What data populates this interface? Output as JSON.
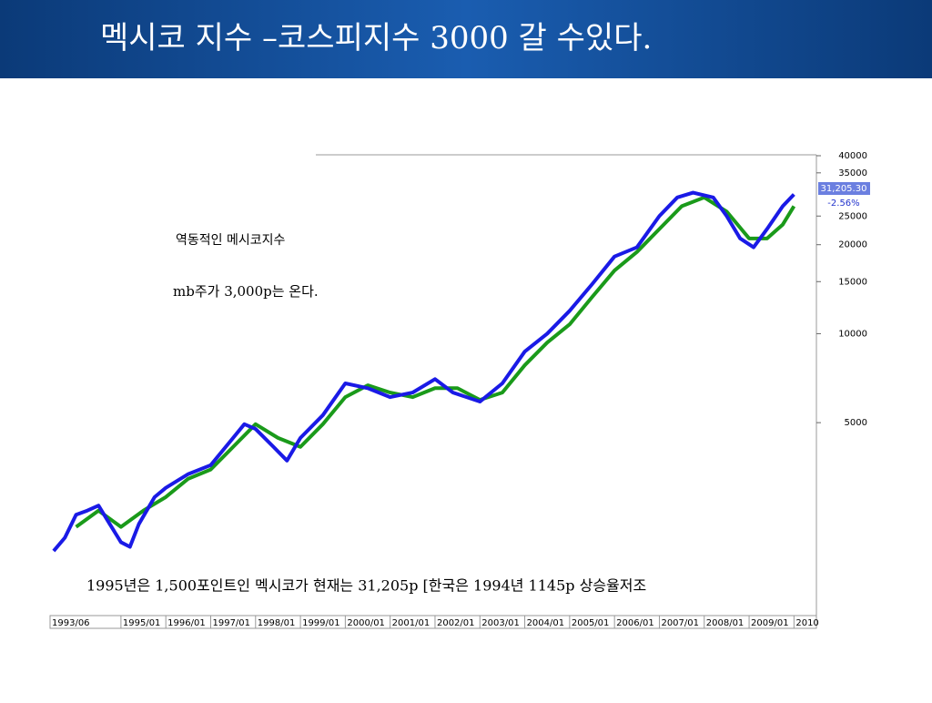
{
  "chart_data": {
    "type": "line",
    "title": "멕시코 지수 –코스피지수 3000 갈 수있다.",
    "annotations": [
      "역동적인 메시코지수",
      "mb주가  3,000p는 온다.",
      "1995년은 1,500포인트인 멕시코가 현재는 31,205p [한국은 1994년 1145p 상승율저조"
    ],
    "last_price": "31,205.30",
    "change": "-2.56%",
    "log_y": true,
    "ylim": [
      1000,
      40000
    ],
    "yticks": [
      5000,
      10000,
      15000,
      20000,
      25000,
      35000,
      40000
    ],
    "xlim": [
      1993.42,
      2010.5
    ],
    "xticks": [
      {
        "value": 1993.42,
        "label": "1993/06"
      },
      {
        "value": 1995,
        "label": "1995/01"
      },
      {
        "value": 1996,
        "label": "1996/01"
      },
      {
        "value": 1997,
        "label": "1997/01"
      },
      {
        "value": 1998,
        "label": "1998/01"
      },
      {
        "value": 1999,
        "label": "1999/01"
      },
      {
        "value": 2000,
        "label": "2000/01"
      },
      {
        "value": 2001,
        "label": "2001/01"
      },
      {
        "value": 2002,
        "label": "2002/01"
      },
      {
        "value": 2003,
        "label": "2003/01"
      },
      {
        "value": 2004,
        "label": "2004/01"
      },
      {
        "value": 2005,
        "label": "2005/01"
      },
      {
        "value": 2006,
        "label": "2006/01"
      },
      {
        "value": 2007,
        "label": "2007/01"
      },
      {
        "value": 2008,
        "label": "2008/01"
      },
      {
        "value": 2009,
        "label": "2009/01"
      },
      {
        "value": 2010,
        "label": "2010"
      }
    ],
    "series": [
      {
        "color": "#1a9a1a",
        "width": 4,
        "x": [
          1994.0,
          1994.5,
          1995.0,
          1995.5,
          1996.0,
          1996.5,
          1997.0,
          1997.5,
          1998.0,
          1998.5,
          1999.0,
          1999.5,
          2000.0,
          2000.5,
          2001.0,
          2001.5,
          2002.0,
          2002.5,
          2003.0,
          2003.5,
          2004.0,
          2004.5,
          2005.0,
          2005.5,
          2006.0,
          2006.5,
          2007.0,
          2007.5,
          2008.0,
          2008.5,
          2009.0,
          2009.4,
          2009.75,
          2010.0
        ],
        "values": [
          2220,
          2520,
          2220,
          2520,
          2800,
          3230,
          3470,
          4140,
          4940,
          4440,
          4140,
          4940,
          6100,
          6690,
          6320,
          6100,
          6540,
          6540,
          5970,
          6320,
          7820,
          9330,
          10750,
          13300,
          16360,
          18900,
          22600,
          27000,
          28900,
          25900,
          21000,
          21000,
          23400,
          27000
        ]
      },
      {
        "color": "#1a1ae6",
        "width": 4,
        "x": [
          1993.5,
          1993.75,
          1994.0,
          1994.25,
          1994.5,
          1994.75,
          1995.0,
          1995.2,
          1995.4,
          1995.75,
          1996.0,
          1996.5,
          1997.0,
          1997.5,
          1997.75,
          1998.0,
          1998.4,
          1998.7,
          1999.0,
          1999.5,
          2000.0,
          2000.5,
          2001.0,
          2001.5,
          2002.0,
          2002.4,
          2003.0,
          2003.5,
          2004.0,
          2004.5,
          2005.0,
          2005.5,
          2006.0,
          2006.5,
          2007.0,
          2007.4,
          2007.75,
          2008.2,
          2008.5,
          2008.8,
          2009.1,
          2009.4,
          2009.75,
          2010.0
        ],
        "values": [
          1840,
          2040,
          2440,
          2520,
          2620,
          2270,
          1970,
          1900,
          2270,
          2800,
          3010,
          3350,
          3590,
          4440,
          4940,
          4760,
          4140,
          3720,
          4440,
          5300,
          6790,
          6540,
          6100,
          6320,
          7020,
          6320,
          5890,
          6790,
          8700,
          10000,
          11950,
          14700,
          18240,
          19600,
          25000,
          28900,
          30000,
          28900,
          25000,
          21000,
          19600,
          22600,
          27000,
          29600
        ]
      }
    ]
  }
}
